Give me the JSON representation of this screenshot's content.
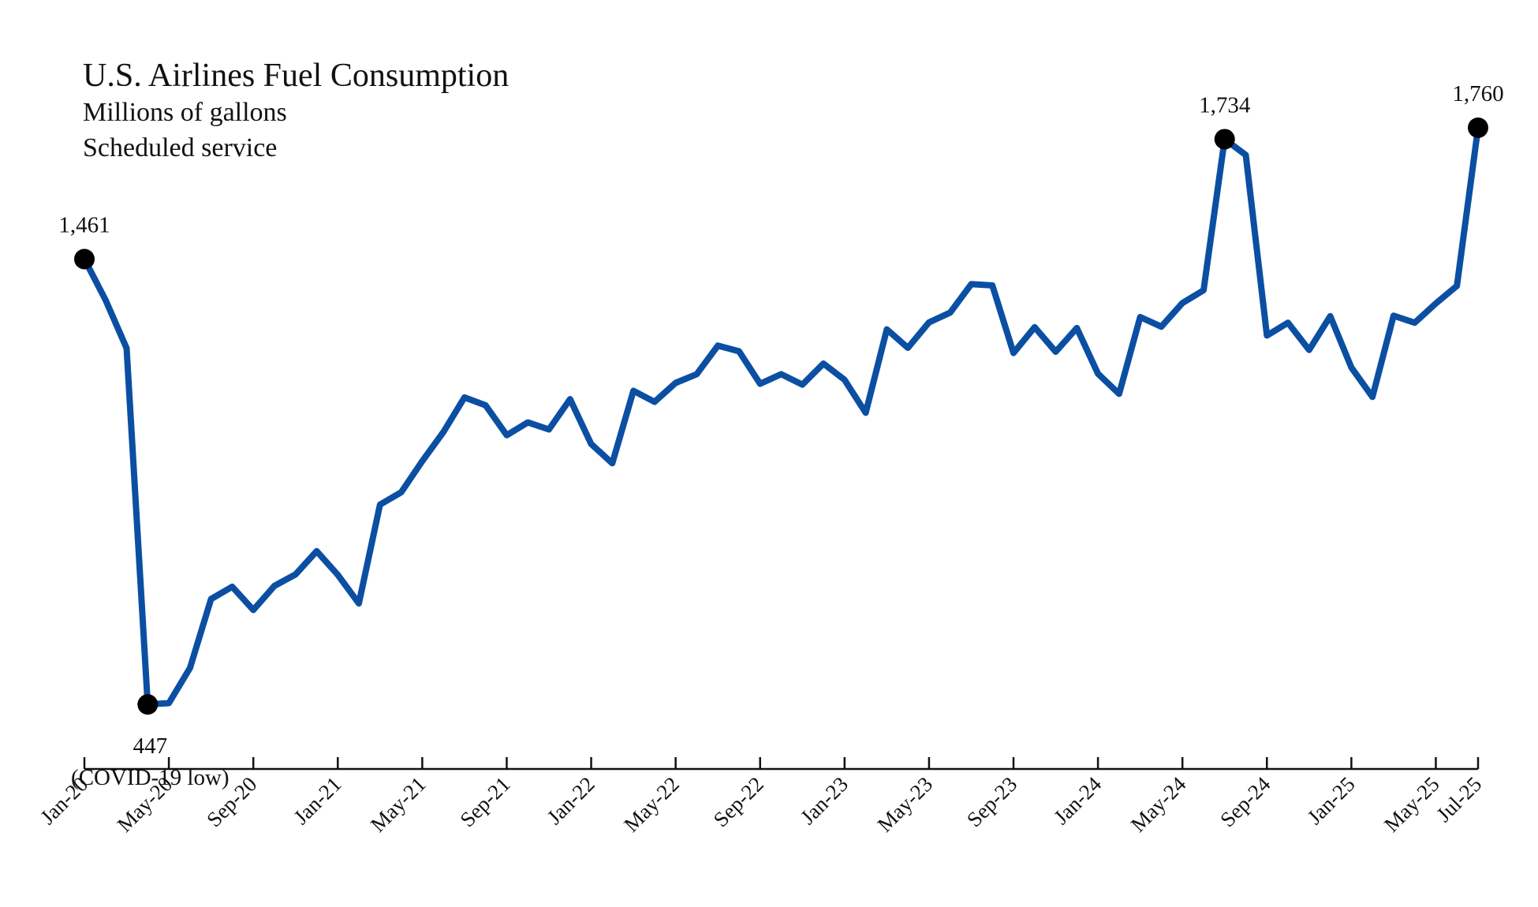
{
  "chart_data": {
    "type": "line",
    "title": "U.S. Airlines Fuel Consumption",
    "subtitle_lines": [
      "Millions of gallons",
      "Scheduled service"
    ],
    "xlabel": "",
    "ylabel": "",
    "ylim": [
      300,
      1900
    ],
    "grid": false,
    "line_color": "#0b4fa3",
    "tick_labels": [
      "Jan-20",
      "May-20",
      "Sep-20",
      "Jan-21",
      "May-21",
      "Sep-21",
      "Jan-22",
      "May-22",
      "Sep-22",
      "Jan-23",
      "May-23",
      "Sep-23",
      "Jan-24",
      "May-24",
      "Sep-24",
      "Jan-25",
      "May-25",
      "Jul-25"
    ],
    "tick_month_indices": [
      0,
      4,
      8,
      12,
      16,
      20,
      24,
      28,
      32,
      36,
      40,
      44,
      48,
      52,
      56,
      60,
      64,
      66
    ],
    "series": [
      {
        "name": "Fuel consumption",
        "values": [
          1461,
          1368,
          1258,
          447,
          450,
          530,
          687,
          715,
          662,
          717,
          743,
          796,
          742,
          677,
          902,
          930,
          1001,
          1067,
          1146,
          1128,
          1060,
          1089,
          1073,
          1142,
          1040,
          996,
          1161,
          1136,
          1179,
          1199,
          1264,
          1251,
          1177,
          1199,
          1175,
          1223,
          1186,
          1111,
          1301,
          1259,
          1317,
          1339,
          1404,
          1401,
          1247,
          1306,
          1250,
          1304,
          1200,
          1154,
          1329,
          1307,
          1361,
          1390,
          1734,
          1698,
          1287,
          1316,
          1254,
          1331,
          1214,
          1147,
          1332,
          1316,
          1360,
          1400,
          1760
        ]
      }
    ],
    "annotations": [
      {
        "index": 0,
        "value": 1461,
        "label": "1,461",
        "note": ""
      },
      {
        "index": 3,
        "value": 447,
        "label": "447",
        "note": "(COVID-19 low)"
      },
      {
        "index": 54,
        "value": 1734,
        "label": "1,734",
        "note": ""
      },
      {
        "index": 66,
        "value": 1760,
        "label": "1,760",
        "note": ""
      }
    ]
  }
}
